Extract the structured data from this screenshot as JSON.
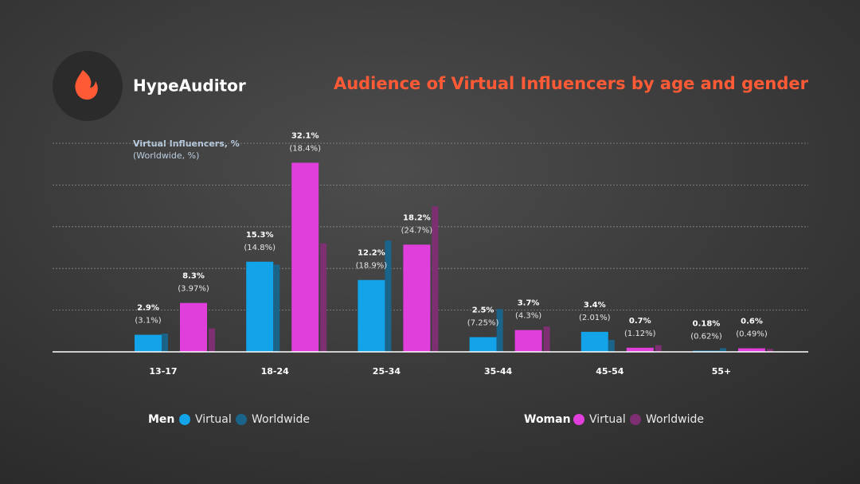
{
  "brand": "HypeAuditor",
  "chart_data": {
    "type": "bar",
    "title": "Audience of Virtual Influencers by age and gender",
    "annotation": [
      "Virtual Influencers, %",
      "(Worldwide, %)"
    ],
    "categories": [
      "13-17",
      "18-24",
      "25-34",
      "35-44",
      "45-54",
      "55+"
    ],
    "ylim": [
      0,
      35.4
    ],
    "series": [
      {
        "group": "Men",
        "name": "Virtual",
        "color": "#12a3e8",
        "values": [
          2.9,
          15.3,
          12.2,
          2.5,
          3.4,
          0.18
        ],
        "value_labels": [
          "2.9%",
          "15.3%",
          "12.2%",
          "2.5%",
          "3.4%",
          "0.18%"
        ]
      },
      {
        "group": "Men",
        "name": "Worldwide",
        "color": "#1b6489",
        "values": [
          3.1,
          14.8,
          18.9,
          7.25,
          2.01,
          0.62
        ],
        "value_labels": [
          "(3.1%)",
          "(14.8%)",
          "(18.9%)",
          "(7.25%)",
          "(2.01%)",
          "(0.62%)"
        ]
      },
      {
        "group": "Woman",
        "name": "Virtual",
        "color": "#e03fdc",
        "values": [
          8.3,
          32.1,
          18.2,
          3.7,
          0.7,
          0.6
        ],
        "value_labels": [
          "8.3%",
          "32.1%",
          "18.2%",
          "3.7%",
          "0.7%",
          "0.6%"
        ]
      },
      {
        "group": "Woman",
        "name": "Worldwide",
        "color": "#7d2f72",
        "values": [
          3.97,
          18.4,
          24.7,
          4.3,
          1.12,
          0.49
        ],
        "value_labels": [
          "(3.97%)",
          "(18.4%)",
          "(24.7%)",
          "(4.3%)",
          "(1.12%)",
          "(0.49%)"
        ]
      }
    ]
  }
}
